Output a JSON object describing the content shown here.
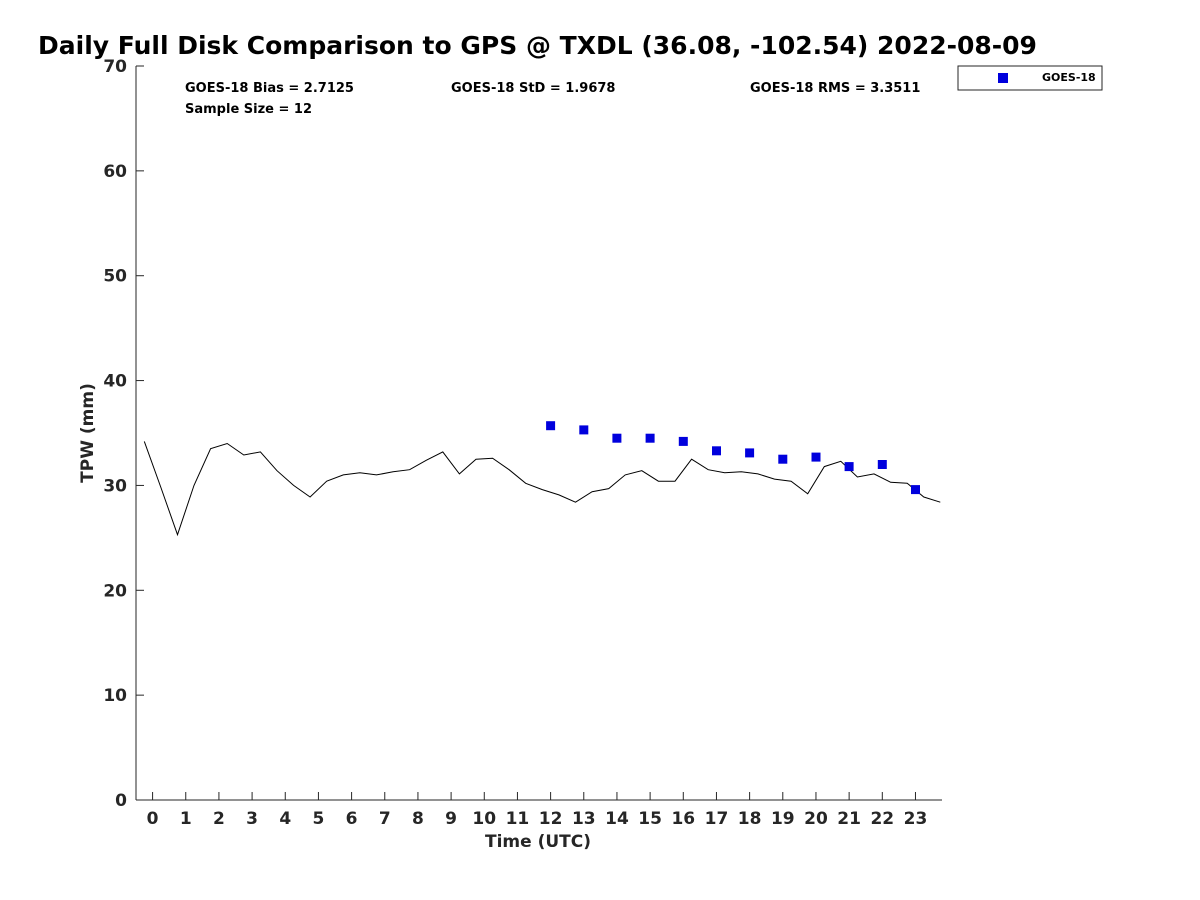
{
  "chart_data": {
    "type": "scatter",
    "title": "Daily Full Disk Comparison to GPS @ TXDL (36.08, -102.54) 2022-08-09",
    "xlabel": "Time (UTC)",
    "ylabel": "TPW (mm)",
    "xlim": [
      -0.5,
      23.8
    ],
    "ylim": [
      0,
      70
    ],
    "x_ticks": [
      "0",
      "1",
      "2",
      "3",
      "4",
      "5",
      "6",
      "7",
      "8",
      "9",
      "10",
      "11",
      "12",
      "13",
      "14",
      "15",
      "16",
      "17",
      "18",
      "19",
      "20",
      "21",
      "22",
      "23"
    ],
    "y_ticks": [
      "0",
      "10",
      "20",
      "30",
      "40",
      "50",
      "60",
      "70"
    ],
    "grid": false,
    "legend_position": "top-right outside",
    "stats": {
      "bias": "GOES-18 Bias = 2.7125",
      "std": "GOES-18 StD = 1.9678",
      "rms": "GOES-18 RMS = 3.3511",
      "sample_size": "Sample Size = 12"
    },
    "series": [
      {
        "name": "GOES-18",
        "kind": "scatter",
        "color": "#0000dd",
        "marker": "square",
        "x": [
          12,
          13,
          14,
          15,
          16,
          17,
          18,
          19,
          20,
          21,
          22,
          23
        ],
        "y": [
          35.7,
          35.3,
          34.5,
          34.5,
          34.2,
          33.3,
          33.1,
          32.5,
          32.7,
          31.8,
          32.0,
          29.6
        ]
      },
      {
        "kind": "line",
        "color": "#000000",
        "x": [
          -0.25,
          0.25,
          0.75,
          1.25,
          1.75,
          2.25,
          2.75,
          3.25,
          3.75,
          4.25,
          4.75,
          5.25,
          5.75,
          6.25,
          6.75,
          7.25,
          7.75,
          8.25,
          8.75,
          9.25,
          9.75,
          10.25,
          10.75,
          11.25,
          11.75,
          12.25,
          12.75,
          13.25,
          13.75,
          14.25,
          14.75,
          15.25,
          15.75,
          16.25,
          16.75,
          17.25,
          17.75,
          18.25,
          18.75,
          19.25,
          19.75,
          20.25,
          20.75,
          21.25,
          21.75,
          22.25,
          22.75,
          23.25,
          23.75
        ],
        "y": [
          34.2,
          29.8,
          25.3,
          30.0,
          33.5,
          34.0,
          32.9,
          33.2,
          31.4,
          30.0,
          28.9,
          30.4,
          31.0,
          31.2,
          31.0,
          31.3,
          31.5,
          32.4,
          33.2,
          31.1,
          32.5,
          32.6,
          31.5,
          30.2,
          29.6,
          29.1,
          28.4,
          29.4,
          29.7,
          31.0,
          31.4,
          30.4,
          30.4,
          32.5,
          31.5,
          31.2,
          31.3,
          31.1,
          30.6,
          30.4,
          29.2,
          31.8,
          32.3,
          30.8,
          31.1,
          30.3,
          30.2,
          28.9,
          28.4
        ]
      }
    ]
  }
}
